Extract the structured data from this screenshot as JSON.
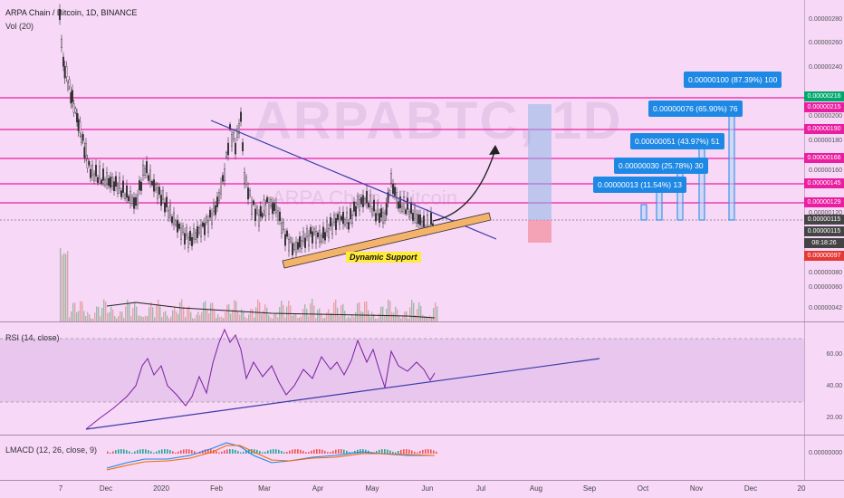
{
  "header": {
    "symbol": "ARPA Chain / Bitcoin, 1D, BINANCE",
    "volume": "Vol (20)"
  },
  "watermark": {
    "ticker": "ARPABTC, 1D",
    "name": "ARPA Chain / Bitcoin"
  },
  "price_axis": {
    "labels": [
      "0.00000280",
      "0.00000260",
      "0.00000240",
      "0.00000220",
      "0.00000200",
      "0.00000180",
      "0.00000160",
      "0.00000140",
      "0.00000120",
      "0.00000100",
      "0.00000080",
      "0.00000060",
      "0.00000042"
    ],
    "badges": [
      {
        "text": "0.00000216",
        "color": "#00a86b"
      },
      {
        "text": "0.00000215",
        "color": "#e91ea0"
      },
      {
        "text": "0.00000190",
        "color": "#e91ea0"
      },
      {
        "text": "0.00000166",
        "color": "#e91ea0"
      },
      {
        "text": "0.00000145",
        "color": "#e91ea0"
      },
      {
        "text": "0.00000129",
        "color": "#e91ea0"
      },
      {
        "text": "0.00000115",
        "color": "#444444"
      },
      {
        "text": "0.00000115",
        "color": "#444444"
      },
      {
        "text": "08:18:26",
        "color": "#444444"
      },
      {
        "text": "0.00000097",
        "color": "#e53935"
      }
    ]
  },
  "projections": [
    {
      "text": "0.00000100 (87.39%) 100"
    },
    {
      "text": "0.00000076 (65.90%) 76"
    },
    {
      "text": "0.00000051 (43.97%) 51"
    },
    {
      "text": "0.00000030 (25.78%) 30"
    },
    {
      "text": "0.00000013 (11.54%) 13"
    }
  ],
  "annotation": {
    "support": "Dynamic Support"
  },
  "rsi": {
    "title": "RSI (14, close)",
    "labels": [
      "60.00",
      "40.00",
      "20.00"
    ]
  },
  "lmacd": {
    "title": "LMACD (12, 26, close, 9)",
    "label": "0.00000000"
  },
  "time_axis": [
    "7",
    "Dec",
    "2020",
    "Feb",
    "Mar",
    "Apr",
    "May",
    "Jun",
    "Jul",
    "Aug",
    "Sep",
    "Oct",
    "Nov",
    "Dec",
    "20"
  ],
  "colors": {
    "background": "#f7d8f7",
    "magenta": "#e91ea0",
    "blue": "#1e88e5",
    "trend": "#3a3aaa",
    "support": "#f4b36b"
  }
}
